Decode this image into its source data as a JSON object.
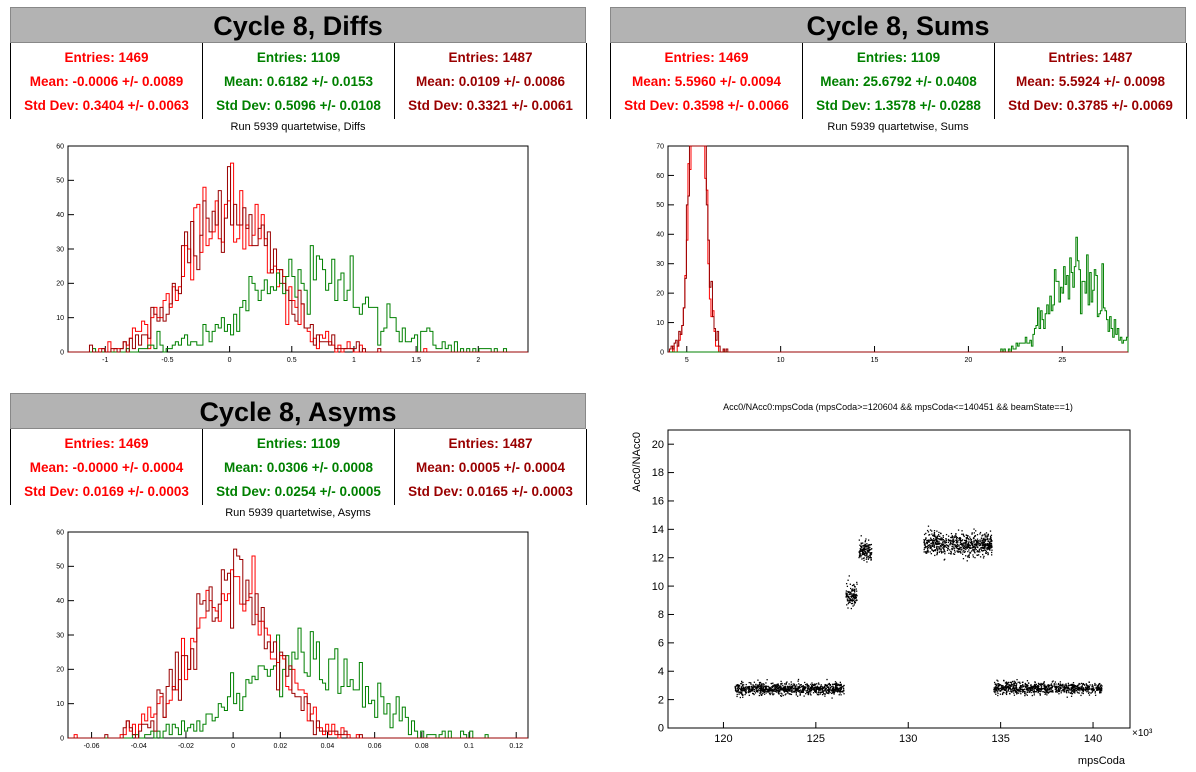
{
  "colors": {
    "s1": "#ff0000",
    "s2": "#008000",
    "s3": "#990000"
  },
  "panels": [
    {
      "id": "diffs",
      "banner": "Cycle 8, Diffs",
      "stats": [
        {
          "entries": "Entries: 1469",
          "mean": "Mean: -0.0006 +/- 0.0089",
          "std": "Std Dev: 0.3404 +/- 0.0063",
          "color": "#ff0000"
        },
        {
          "entries": "Entries: 1109",
          "mean": "Mean: 0.6182 +/- 0.0153",
          "std": "Std Dev: 0.5096 +/- 0.0108",
          "color": "#008000"
        },
        {
          "entries": "Entries: 1487",
          "mean": "Mean: 0.0109 +/- 0.0086",
          "std": "Std Dev: 0.3321 +/- 0.0061",
          "color": "#990000"
        }
      ],
      "subtitle": "Run 5939 quartetwise, Diffs"
    },
    {
      "id": "sums",
      "banner": "Cycle 8, Sums",
      "stats": [
        {
          "entries": "Entries: 1469",
          "mean": "Mean: 5.5960 +/- 0.0094",
          "std": "Std Dev: 0.3598 +/- 0.0066",
          "color": "#ff0000"
        },
        {
          "entries": "Entries: 1109",
          "mean": "Mean: 25.6792 +/- 0.0408",
          "std": "Std Dev: 1.3578 +/- 0.0288",
          "color": "#008000"
        },
        {
          "entries": "Entries: 1487",
          "mean": "Mean: 5.5924 +/- 0.0098",
          "std": "Std Dev: 0.3785 +/- 0.0069",
          "color": "#990000"
        }
      ],
      "subtitle": "Run 5939 quartetwise, Sums"
    },
    {
      "id": "asyms",
      "banner": "Cycle 8, Asyms",
      "stats": [
        {
          "entries": "Entries: 1469",
          "mean": "Mean: -0.0000 +/- 0.0004",
          "std": "Std Dev: 0.0169 +/- 0.0003",
          "color": "#ff0000"
        },
        {
          "entries": "Entries: 1109",
          "mean": "Mean: 0.0306 +/- 0.0008",
          "std": "Std Dev: 0.0254 +/- 0.0005",
          "color": "#008000"
        },
        {
          "entries": "Entries: 1487",
          "mean": "Mean: 0.0005 +/- 0.0004",
          "std": "Std Dev: 0.0165 +/- 0.0003",
          "color": "#990000"
        }
      ],
      "subtitle": "Run 5939 quartetwise, Asyms"
    }
  ],
  "chart_data": [
    {
      "id": "diffs",
      "type": "histogram",
      "xlim": [
        -1.3,
        2.4
      ],
      "ylim": [
        0,
        60
      ],
      "xticks": [
        -1,
        -0.5,
        0,
        0.5,
        1,
        1.5,
        2
      ],
      "yticks": [
        0,
        10,
        20,
        30,
        40,
        50,
        60
      ],
      "series": [
        {
          "mean": -0.0006,
          "std": 0.3404,
          "entries": 1469,
          "color": "#ff0000"
        },
        {
          "mean": 0.6182,
          "std": 0.5096,
          "entries": 1109,
          "color": "#008000"
        },
        {
          "mean": 0.0109,
          "std": 0.3321,
          "entries": 1487,
          "color": "#990000"
        }
      ]
    },
    {
      "id": "sums",
      "type": "histogram",
      "xlim": [
        4,
        28.5
      ],
      "ylim": [
        0,
        70
      ],
      "xticks": [
        5,
        10,
        15,
        20,
        25
      ],
      "yticks": [
        0,
        10,
        20,
        30,
        40,
        50,
        60,
        70
      ],
      "series": [
        {
          "mean": 5.596,
          "std": 0.3598,
          "entries": 1469,
          "color": "#ff0000"
        },
        {
          "mean": 25.6792,
          "std": 1.3578,
          "entries": 1109,
          "color": "#008000"
        },
        {
          "mean": 5.5924,
          "std": 0.3785,
          "entries": 1487,
          "color": "#990000"
        }
      ]
    },
    {
      "id": "asyms",
      "type": "histogram",
      "xlim": [
        -0.07,
        0.125
      ],
      "ylim": [
        0,
        60
      ],
      "xticks": [
        -0.06,
        -0.04,
        -0.02,
        0,
        0.02,
        0.04,
        0.06,
        0.08,
        0.1,
        0.12
      ],
      "yticks": [
        0,
        10,
        20,
        30,
        40,
        50,
        60
      ],
      "series": [
        {
          "mean": 0.0,
          "std": 0.0169,
          "entries": 1469,
          "color": "#ff0000"
        },
        {
          "mean": 0.0306,
          "std": 0.0254,
          "entries": 1109,
          "color": "#008000"
        },
        {
          "mean": 0.0005,
          "std": 0.0165,
          "entries": 1487,
          "color": "#990000"
        }
      ]
    },
    {
      "id": "scatter",
      "type": "scatter",
      "title": "Acc0/NAcc0:mpsCoda (mpsCoda>=120604 && mpsCoda<=140451 && beamState==1)",
      "xlabel": "mpsCoda",
      "ylabel": "Acc0/NAcc0",
      "xscale_label": "×10³",
      "xlim": [
        117,
        142
      ],
      "ylim": [
        0,
        21
      ],
      "xticks": [
        120,
        125,
        130,
        135,
        140
      ],
      "yticks": [
        0,
        2,
        4,
        6,
        8,
        10,
        12,
        14,
        16,
        18,
        20
      ],
      "clusters": [
        {
          "x": [
            120.6,
            126.5
          ],
          "y_center": 2.8,
          "y_spread": 0.35,
          "density": 900
        },
        {
          "x": [
            126.6,
            127.2
          ],
          "y_center": 9.4,
          "y_spread": 0.7,
          "density": 120
        },
        {
          "x": [
            127.3,
            128.0
          ],
          "y_center": 12.5,
          "y_spread": 0.6,
          "density": 140
        },
        {
          "x": [
            130.8,
            134.5
          ],
          "y_center": 13.0,
          "y_spread": 0.65,
          "density": 700
        },
        {
          "x": [
            134.6,
            140.45
          ],
          "y_center": 2.85,
          "y_spread": 0.35,
          "density": 850
        }
      ]
    }
  ]
}
